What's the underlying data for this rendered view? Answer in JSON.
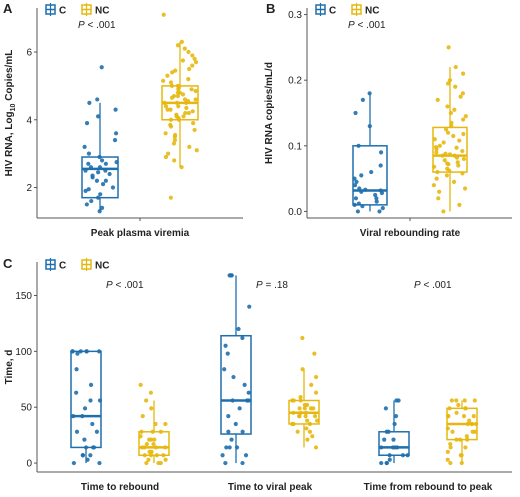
{
  "colors": {
    "C": "#1f6fad",
    "NC": "#e6b80f",
    "axis": "#555555",
    "text": "#222222"
  },
  "legend": {
    "c_label": "C",
    "nc_label": "NC"
  },
  "chart_data": [
    {
      "panel": "A",
      "type": "box",
      "xlabel": "Peak plasma viremia",
      "ylabel_main": "HIV RNA, Log",
      "ylabel_sub": "10",
      "ylabel_tail": " Copies/mL",
      "ylim": [
        1.1,
        7.3
      ],
      "yticks": [
        "2",
        "4",
        "6"
      ],
      "annotation": "P < .001",
      "legend_position": "top-left",
      "groups": [
        {
          "name": "Peak plasma viremia",
          "C": {
            "min": 1.3,
            "q1": 1.7,
            "median": 2.55,
            "q3": 2.9,
            "max": 4.5
          },
          "NC": {
            "min": 2.6,
            "q1": 4.0,
            "median": 4.5,
            "q3": 5.0,
            "max": 6.3
          }
        }
      ],
      "points": {
        "C": [
          1.3,
          1.4,
          1.5,
          1.6,
          1.7,
          1.8,
          1.9,
          2.0,
          2.1,
          2.2,
          2.3,
          2.4,
          2.5,
          2.5,
          2.6,
          2.6,
          2.7,
          2.7,
          2.8,
          2.9,
          3.0,
          3.2,
          3.4,
          3.6,
          3.9,
          4.1,
          4.3,
          4.5,
          4.6,
          5.55,
          2.2,
          2.35,
          1.95,
          2.75,
          2.45
        ],
        "NC": [
          1.7,
          2.6,
          2.8,
          3.0,
          3.2,
          3.4,
          3.5,
          3.6,
          3.7,
          3.8,
          3.9,
          4.0,
          4.0,
          4.1,
          4.1,
          4.2,
          4.2,
          4.3,
          4.3,
          4.4,
          4.4,
          4.5,
          4.5,
          4.5,
          4.6,
          4.6,
          4.7,
          4.7,
          4.8,
          4.8,
          4.9,
          4.9,
          5.0,
          5.0,
          5.1,
          5.2,
          5.3,
          5.4,
          5.5,
          5.6,
          5.7,
          5.8,
          5.9,
          6.0,
          6.1,
          6.3,
          7.1,
          3.3,
          3.55,
          3.85,
          4.15,
          4.35,
          4.55,
          4.65,
          4.85,
          5.15,
          5.45,
          5.75,
          6.2,
          2.9,
          3.1,
          4.05,
          4.25,
          4.75,
          4.95
        ]
      }
    },
    {
      "panel": "B",
      "type": "box",
      "xlabel": "Viral rebounding rate",
      "ylabel_main": "HIV RNA copies/mL/d",
      "ylim": [
        -0.01,
        0.31
      ],
      "yticks": [
        "0.0",
        "0.1",
        "0.2",
        "0.3"
      ],
      "annotation": "P < .001",
      "legend_position": "top-left",
      "groups": [
        {
          "name": "Viral rebounding rate",
          "C": {
            "min": 0.0,
            "q1": 0.01,
            "median": 0.032,
            "q3": 0.1,
            "max": 0.18
          },
          "NC": {
            "min": 0.0,
            "q1": 0.06,
            "median": 0.085,
            "q3": 0.128,
            "max": 0.22
          }
        }
      ],
      "points": {
        "C": [
          0.0,
          0.0,
          0.005,
          0.008,
          0.01,
          0.012,
          0.015,
          0.02,
          0.025,
          0.028,
          0.03,
          0.032,
          0.035,
          0.04,
          0.045,
          0.05,
          0.06,
          0.07,
          0.09,
          0.1,
          0.13,
          0.15,
          0.17,
          0.18,
          0.02,
          0.033,
          0.055
        ],
        "NC": [
          0.0,
          0.01,
          0.02,
          0.03,
          0.04,
          0.045,
          0.05,
          0.055,
          0.06,
          0.062,
          0.065,
          0.068,
          0.07,
          0.072,
          0.075,
          0.078,
          0.08,
          0.082,
          0.085,
          0.085,
          0.088,
          0.09,
          0.092,
          0.095,
          0.098,
          0.1,
          0.105,
          0.11,
          0.115,
          0.12,
          0.125,
          0.13,
          0.14,
          0.15,
          0.16,
          0.17,
          0.18,
          0.19,
          0.2,
          0.21,
          0.22,
          0.25,
          0.035,
          0.058,
          0.073,
          0.087,
          0.097,
          0.108,
          0.118,
          0.135,
          0.145,
          0.155,
          0.175,
          0.195
        ]
      }
    },
    {
      "panel": "C",
      "type": "box",
      "ylabel_main": "Time, d",
      "ylim": [
        -8,
        180
      ],
      "yticks": [
        "0",
        "50",
        "100",
        "150"
      ],
      "legend_position": "top-left",
      "groups": [
        {
          "name": "Time to rebound",
          "annotation": "P < .001",
          "C": {
            "min": 0,
            "q1": 14,
            "median": 42,
            "q3": 100,
            "max": 100
          },
          "NC": {
            "min": 0,
            "q1": 7,
            "median": 14,
            "q3": 28,
            "max": 56
          }
        },
        {
          "name": "Time to viral peak",
          "annotation": "P = .18",
          "C": {
            "min": 0,
            "q1": 26,
            "median": 56,
            "q3": 114,
            "max": 168
          },
          "NC": {
            "min": 14,
            "q1": 35,
            "median": 45,
            "q3": 56,
            "max": 84
          }
        },
        {
          "name": "Time from rebound to peak",
          "annotation": "P < .001",
          "C": {
            "min": 0,
            "q1": 7,
            "median": 14,
            "q3": 28,
            "max": 56
          },
          "NC": {
            "min": 0,
            "q1": 21,
            "median": 35,
            "q3": 49,
            "max": 56
          }
        }
      ],
      "points": {
        "C": [
          [
            0,
            0,
            3,
            7,
            7,
            14,
            14,
            14,
            21,
            28,
            35,
            42,
            42,
            49,
            56,
            56,
            63,
            70,
            84,
            98,
            100,
            100,
            100,
            100,
            100,
            100,
            7,
            28
          ],
          [
            0,
            0,
            7,
            7,
            14,
            14,
            21,
            28,
            28,
            35,
            42,
            49,
            56,
            56,
            56,
            63,
            70,
            77,
            84,
            98,
            105,
            112,
            120,
            140,
            168,
            168,
            168,
            14
          ],
          [
            0,
            0,
            0,
            3,
            7,
            7,
            7,
            14,
            14,
            14,
            14,
            21,
            21,
            28,
            28,
            35,
            42,
            49,
            56,
            56
          ]
        ],
        "NC": [
          [
            0,
            0,
            0,
            3,
            3,
            7,
            7,
            7,
            7,
            10,
            10,
            14,
            14,
            14,
            14,
            17,
            17,
            21,
            21,
            21,
            24,
            28,
            28,
            28,
            35,
            35,
            42,
            49,
            56,
            63,
            70
          ],
          [
            14,
            21,
            24,
            28,
            28,
            31,
            35,
            35,
            38,
            38,
            42,
            42,
            42,
            45,
            45,
            45,
            49,
            49,
            49,
            52,
            52,
            56,
            56,
            56,
            59,
            63,
            70,
            77,
            84,
            98,
            112,
            35,
            42,
            49
          ],
          [
            0,
            0,
            3,
            7,
            7,
            10,
            14,
            14,
            17,
            21,
            21,
            24,
            28,
            28,
            28,
            31,
            35,
            35,
            35,
            38,
            42,
            42,
            42,
            45,
            49,
            49,
            49,
            52,
            56,
            56,
            56,
            56,
            21,
            35,
            42
          ]
        ]
      }
    }
  ]
}
